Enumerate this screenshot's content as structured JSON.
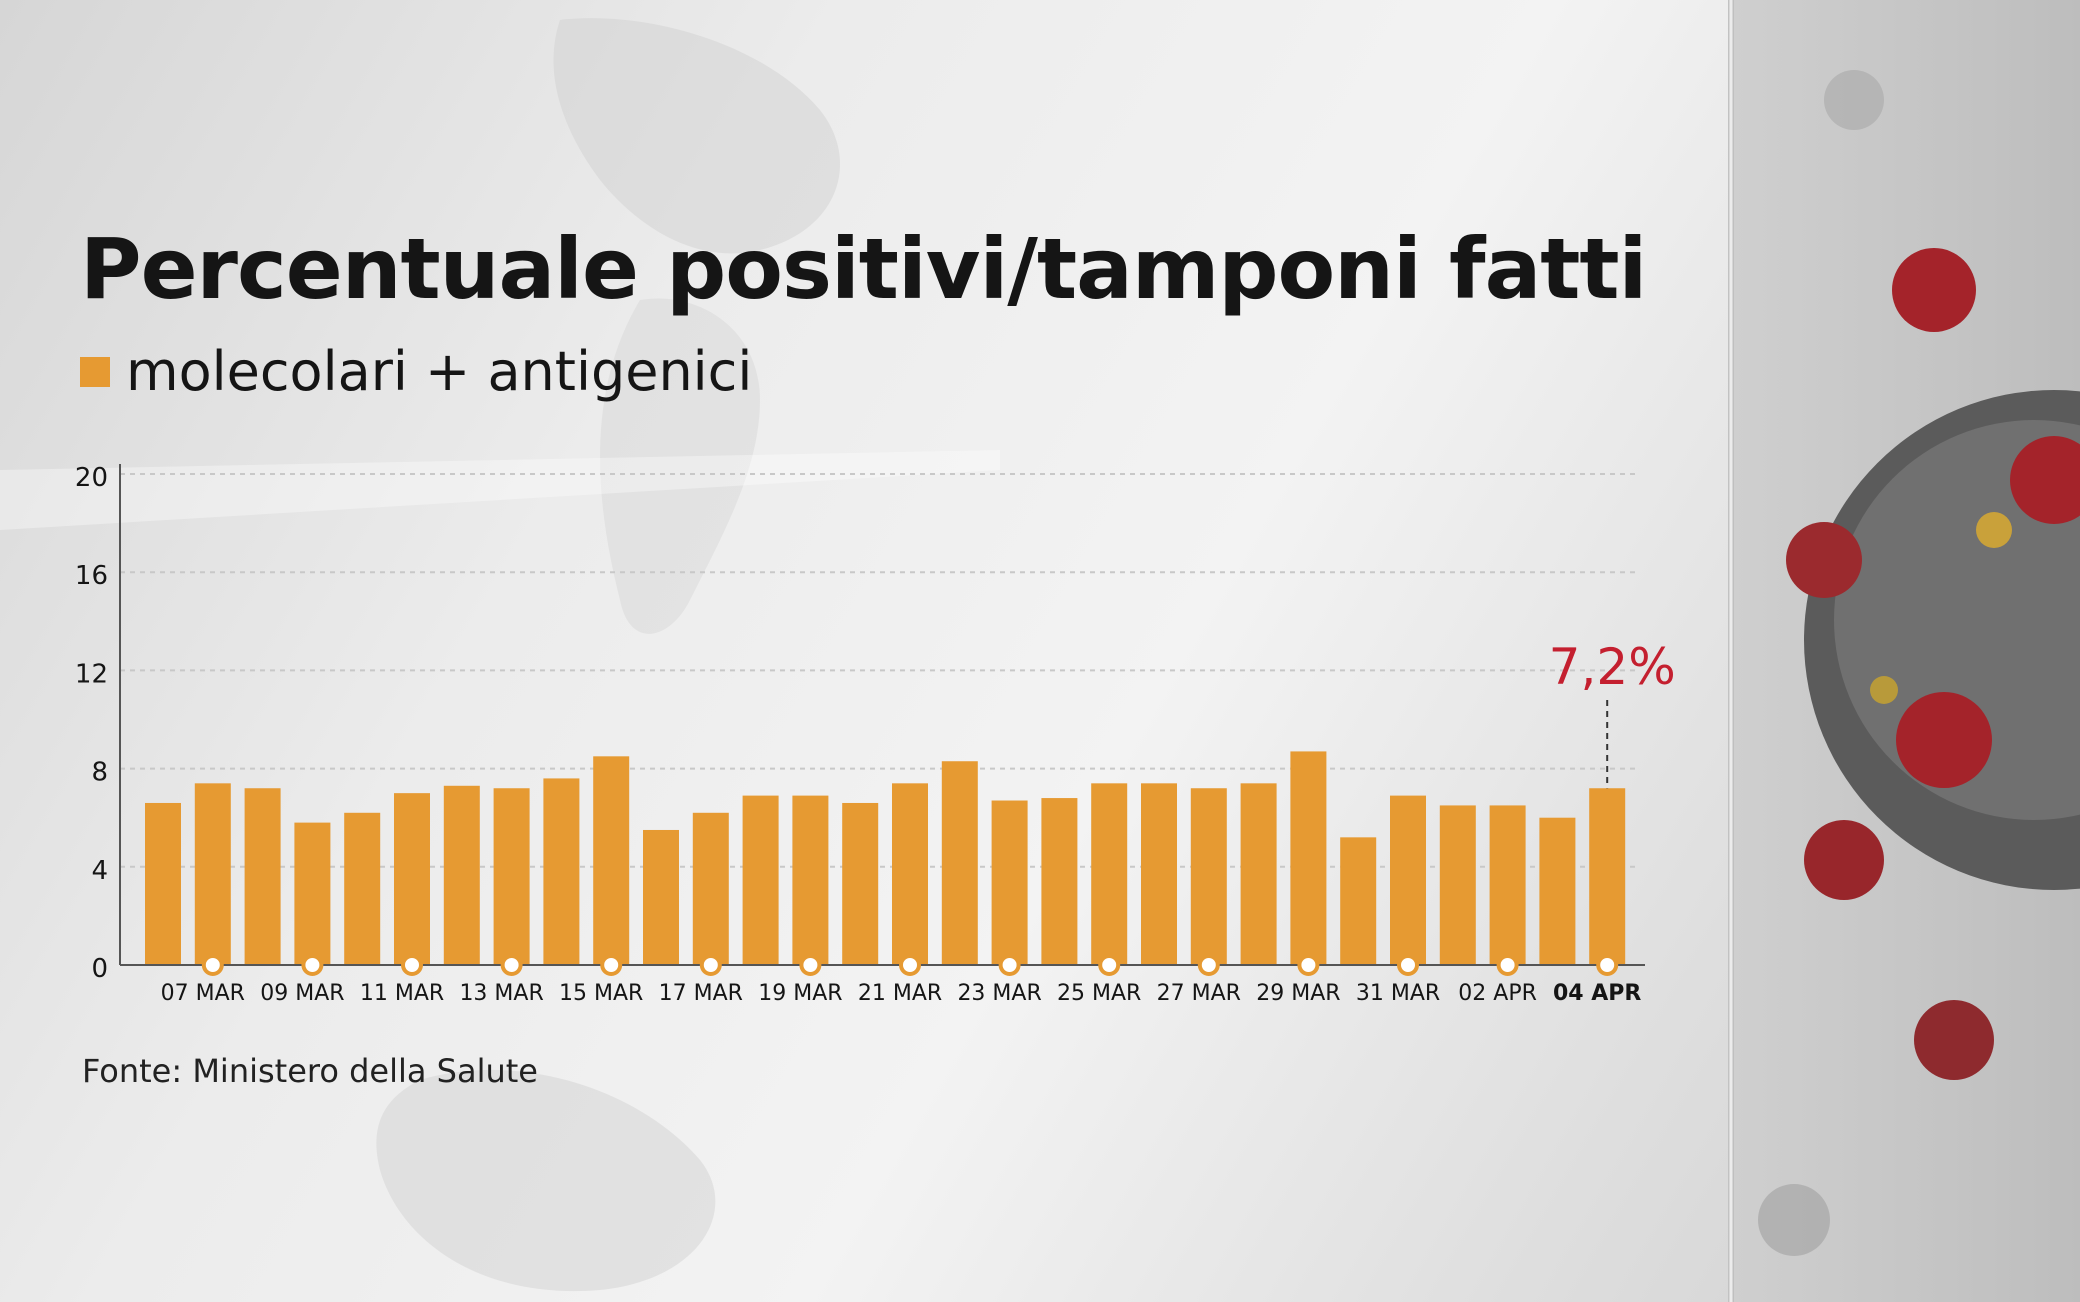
{
  "header": {
    "title": "Percentuale positivi/tamponi fatti",
    "legend_label": "molecolari + antigenici"
  },
  "footer": {
    "source": "Fonte: Ministero della Salute"
  },
  "colors": {
    "bar": "#e69a32",
    "highlight": "#c41f2f",
    "text": "#151515",
    "grid": "#c8c8c8"
  },
  "chart_data": {
    "type": "bar",
    "title": "Percentuale positivi/tamponi fatti",
    "xlabel": "",
    "ylabel": "",
    "ylim": [
      0,
      20
    ],
    "yticks": [
      0,
      4,
      8,
      12,
      16,
      20
    ],
    "grid": true,
    "legend_position": "top-left",
    "categories": [
      "06 MAR",
      "07 MAR",
      "08 MAR",
      "09 MAR",
      "10 MAR",
      "11 MAR",
      "12 MAR",
      "13 MAR",
      "14 MAR",
      "15 MAR",
      "16 MAR",
      "17 MAR",
      "18 MAR",
      "19 MAR",
      "20 MAR",
      "21 MAR",
      "22 MAR",
      "23 MAR",
      "24 MAR",
      "25 MAR",
      "26 MAR",
      "27 MAR",
      "28 MAR",
      "29 MAR",
      "30 MAR",
      "31 MAR",
      "01 APR",
      "02 APR",
      "03 APR",
      "04 APR"
    ],
    "tick_labels": [
      "07 MAR",
      "09 MAR",
      "11 MAR",
      "13 MAR",
      "15 MAR",
      "17 MAR",
      "19 MAR",
      "21 MAR",
      "23 MAR",
      "25 MAR",
      "27 MAR",
      "29 MAR",
      "31 MAR",
      "02 APR",
      "04 APR"
    ],
    "series": [
      {
        "name": "molecolari + antigenici",
        "values": [
          6.6,
          7.4,
          7.2,
          5.8,
          6.2,
          7.0,
          7.3,
          7.2,
          7.6,
          8.5,
          5.5,
          6.2,
          6.9,
          6.9,
          6.6,
          7.4,
          8.3,
          6.7,
          6.8,
          7.4,
          7.4,
          7.2,
          7.4,
          8.7,
          5.2,
          6.9,
          6.5,
          6.5,
          6.0,
          7.2
        ]
      }
    ],
    "annotation": {
      "category": "04 APR",
      "text": "7,2%"
    }
  }
}
